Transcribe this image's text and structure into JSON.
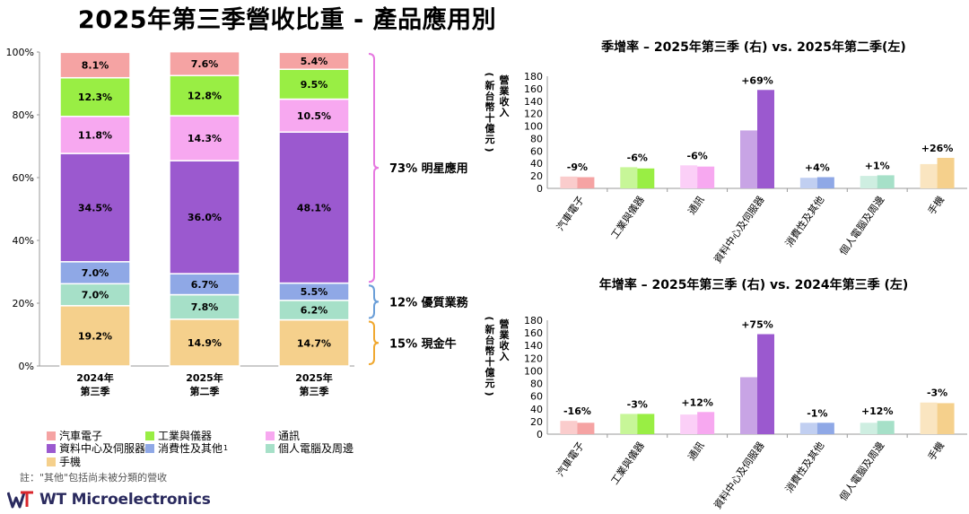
{
  "title": "2025年第三季營收比重 - 產品應用別",
  "colors": {
    "汽車電子": "#f5a3a3",
    "工業與儀器": "#99ee44",
    "通訊": "#f7a8f0",
    "資料中心及伺服器": "#9b59cf",
    "消費性及其他": "#8fa8e6",
    "個人電腦及周邊": "#a6e0c8",
    "手機": "#f5d08c",
    "bracket_magenta": "#e678e0",
    "bracket_blue": "#6a9ed8",
    "bracket_orange": "#f0a830"
  },
  "chart_data": [
    {
      "type": "bar",
      "stacked": true,
      "percent": true,
      "categories": [
        "2024年\n第三季",
        "2025年\n第二季",
        "2025年\n第三季"
      ],
      "series": [
        {
          "name": "手機",
          "values": [
            19.2,
            14.9,
            14.7
          ]
        },
        {
          "name": "個人電腦及周邊",
          "values": [
            7.0,
            7.8,
            6.2
          ]
        },
        {
          "name": "消費性及其他",
          "values": [
            7.0,
            6.7,
            5.5
          ]
        },
        {
          "name": "資料中心及伺服器",
          "values": [
            34.5,
            36.0,
            48.1
          ]
        },
        {
          "name": "通訊",
          "values": [
            11.8,
            14.3,
            10.5
          ]
        },
        {
          "name": "工業與儀器",
          "values": [
            12.3,
            12.8,
            9.5
          ]
        },
        {
          "name": "汽車電子",
          "values": [
            8.1,
            7.6,
            5.4
          ]
        }
      ],
      "labels": [
        [
          "19.2%",
          "14.9%",
          "14.7%"
        ],
        [
          "7.0%",
          "7.8%",
          "6.2%"
        ],
        [
          "7.0%",
          "6.7%",
          "5.5%"
        ],
        [
          "34.5%",
          "36.0%",
          "48.1%"
        ],
        [
          "11.8%",
          "14.3%",
          "10.5%"
        ],
        [
          "12.3%",
          "12.8%",
          "9.5%"
        ],
        [
          "8.1%",
          "7.6%",
          "5.4%"
        ]
      ],
      "yticks": [
        "0%",
        "20%",
        "40%",
        "60%",
        "80%",
        "100%"
      ],
      "ylim": [
        0,
        100
      ],
      "annotations": [
        {
          "text": "73% 明星應用",
          "span": [
            26.2,
            100
          ]
        },
        {
          "text": "12% 優質業務",
          "span": [
            14.7,
            26.2
          ]
        },
        {
          "text": "15% 現金牛",
          "span": [
            0,
            14.7
          ]
        }
      ]
    },
    {
      "type": "bar",
      "title": "季增率 – 2025年第三季 (右) vs. 2025年第二季(左)",
      "ylabel": "營業收入 (新台幣十億元)",
      "ylim": [
        0,
        180
      ],
      "yticks": [
        0,
        20,
        40,
        60,
        80,
        100,
        120,
        140,
        160,
        180
      ],
      "categories": [
        "汽車電子",
        "工業與儀器",
        "通訊",
        "資料中心及伺服器",
        "消費性及其他",
        "個人電腦及周邊",
        "手機"
      ],
      "series": [
        {
          "name": "2025年第二季",
          "values": [
            19,
            34,
            37,
            93,
            17,
            20,
            39
          ]
        },
        {
          "name": "2025年第三季",
          "values": [
            18,
            32,
            35,
            158,
            18,
            21,
            49
          ]
        }
      ],
      "labels": [
        "-9%",
        "-6%",
        "-6%",
        "+69%",
        "+4%",
        "+1%",
        "+26%"
      ]
    },
    {
      "type": "bar",
      "title": "年增率 – 2025年第三季 (右) vs. 2024年第三季 (左)",
      "ylabel": "營業收入 (新台幣十億元)",
      "ylim": [
        0,
        180
      ],
      "yticks": [
        0,
        20,
        40,
        60,
        80,
        100,
        120,
        140,
        160,
        180
      ],
      "categories": [
        "汽車電子",
        "工業與儀器",
        "通訊",
        "資料中心及伺服器",
        "消費性及其他",
        "個人電腦及周邊",
        "手機"
      ],
      "series": [
        {
          "name": "2024年第三季",
          "values": [
            21,
            32,
            31,
            90,
            18,
            18,
            50
          ]
        },
        {
          "name": "2025年第三季",
          "values": [
            18,
            32,
            35,
            158,
            18,
            21,
            49
          ]
        }
      ],
      "labels": [
        "-16%",
        "-3%",
        "+12%",
        "+75%",
        "-1%",
        "+12%",
        "-3%"
      ]
    }
  ],
  "legend": [
    "汽車電子",
    "工業與儀器",
    "通訊",
    "資料中心及伺服器",
    "消費性及其他",
    "個人電腦及周邊",
    "手機"
  ],
  "legend_suffix": "1",
  "footnote": "註：\"其他\"包括尚未被分類的營收",
  "logo_text": "WT Microelectronics"
}
